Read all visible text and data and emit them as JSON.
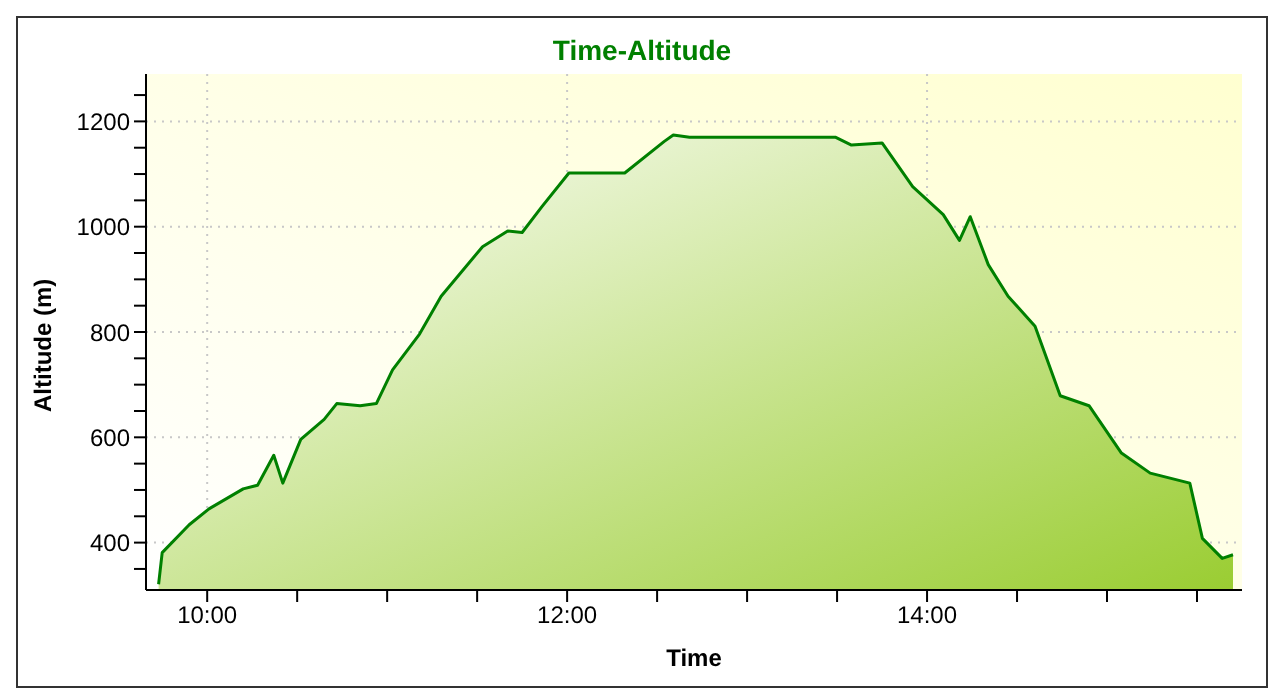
{
  "chart_data": {
    "type": "area",
    "title": "Time-Altitude",
    "xlabel": "Time",
    "ylabel": "Altitude (m)",
    "x": [
      9.73,
      9.75,
      9.9,
      10.01,
      10.2,
      10.28,
      10.37,
      10.42,
      10.52,
      10.65,
      10.72,
      10.85,
      10.94,
      11.03,
      11.18,
      11.3,
      11.53,
      11.67,
      11.75,
      11.86,
      12.01,
      12.32,
      12.54,
      12.59,
      12.68,
      13.49,
      13.58,
      13.75,
      13.92,
      14.09,
      14.18,
      14.24,
      14.34,
      14.45,
      14.6,
      14.74,
      14.9,
      15.08,
      15.24,
      15.46,
      15.53,
      15.64,
      15.7
    ],
    "series": [
      {
        "color": "#008000",
        "values": [
          321,
          381,
          434,
          464,
          502,
          509,
          566,
          513,
          596,
          634,
          664,
          660,
          664,
          728,
          796,
          868,
          962,
          992,
          989,
          1038,
          1102,
          1102,
          1162,
          1174,
          1170,
          1170,
          1155,
          1159,
          1076,
          1023,
          974,
          1019,
          928,
          868,
          811,
          679,
          660,
          570,
          532,
          513,
          408,
          370,
          377
        ]
      }
    ],
    "xlim": [
      9.66,
      15.75
    ],
    "xticks": [
      {
        "value": 10,
        "label": "10:00"
      },
      {
        "value": 10.5,
        "label": null
      },
      {
        "value": 11,
        "label": null
      },
      {
        "value": 11.5,
        "label": null
      },
      {
        "value": 12,
        "label": "12:00"
      },
      {
        "value": 12.5,
        "label": null
      },
      {
        "value": 13,
        "label": null
      },
      {
        "value": 13.5,
        "label": null
      },
      {
        "value": 14,
        "label": "14:00"
      },
      {
        "value": 14.5,
        "label": null
      },
      {
        "value": 15,
        "label": null
      },
      {
        "value": 15.5,
        "label": null
      }
    ],
    "ylim": [
      310,
      1290
    ],
    "yticks": [
      {
        "value": 350,
        "label": null
      },
      400,
      {
        "value": 450,
        "label": null
      },
      {
        "value": 500,
        "label": null
      },
      {
        "value": 550,
        "label": null
      },
      600,
      {
        "value": 650,
        "label": null
      },
      {
        "value": 700,
        "label": null
      },
      {
        "value": 750,
        "label": null
      },
      800,
      {
        "value": 850,
        "label": null
      },
      {
        "value": 900,
        "label": null
      },
      {
        "value": 950,
        "label": null
      },
      1000,
      {
        "value": 1050,
        "label": null
      },
      {
        "value": 1100,
        "label": null
      },
      {
        "value": 1150,
        "label": null
      },
      1200,
      {
        "value": 1250,
        "label": null
      }
    ],
    "grid": true
  }
}
